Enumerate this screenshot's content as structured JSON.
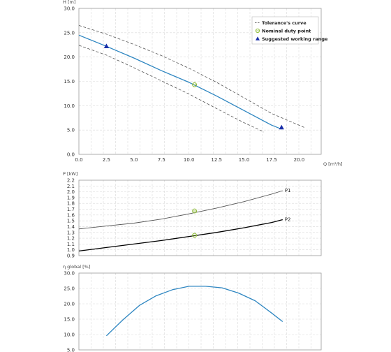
{
  "colors": {
    "grid": "#d9d9d9",
    "axis": "#999999",
    "head_curve": "#2e86c1",
    "tolerance": "#555555",
    "p1_curve": "#555555",
    "p2_curve": "#000000",
    "nominal_marker": "#8fbc3a",
    "range_marker": "#1a2fa8",
    "eff_curve": "#2e86c1"
  },
  "chart_data": [
    {
      "type": "line",
      "xlabel": "Q [m³/h]",
      "ylabel": "H [m]",
      "xlim": [
        0,
        22
      ],
      "ylim": [
        0,
        30
      ],
      "x_ticks": [
        0.0,
        2.5,
        5.0,
        7.5,
        10.0,
        12.5,
        15.0,
        17.5,
        20.0
      ],
      "y_ticks": [
        0.0,
        5.0,
        10.0,
        15.0,
        20.0,
        25.0,
        30.0
      ],
      "grid": true,
      "legend_position": "top-right",
      "legend": [
        {
          "label": "Tolerance's curve",
          "icon": "dashed-line"
        },
        {
          "label": "Nominal duty point",
          "icon": "circle"
        },
        {
          "label": "Suggested working range",
          "icon": "triangle"
        }
      ],
      "series": [
        {
          "role": "head",
          "style": "solid",
          "x": [
            0,
            2.5,
            5,
            7.5,
            10,
            12.5,
            15,
            17.5,
            18.4
          ],
          "y": [
            24.5,
            22.2,
            19.8,
            17.2,
            14.8,
            12.0,
            9.0,
            6.0,
            5.2
          ]
        },
        {
          "role": "tolerance-upper",
          "style": "dashed",
          "x": [
            0,
            2.5,
            5,
            7.5,
            10,
            12.5,
            15,
            17.5,
            20.5
          ],
          "y": [
            26.5,
            24.7,
            22.6,
            20.3,
            17.7,
            14.8,
            11.6,
            8.4,
            5.5
          ]
        },
        {
          "role": "tolerance-lower",
          "style": "dashed",
          "x": [
            0,
            2.5,
            5,
            7.5,
            10,
            12.5,
            15,
            16.8
          ],
          "y": [
            22.4,
            20.4,
            17.8,
            15.1,
            12.4,
            9.4,
            6.5,
            4.6
          ]
        }
      ],
      "points": [
        {
          "role": "nominal",
          "x": 10.5,
          "y": 14.3
        },
        {
          "role": "range",
          "x": 2.5,
          "y": 22.2
        },
        {
          "role": "range",
          "x": 18.4,
          "y": 5.5
        }
      ]
    },
    {
      "type": "line",
      "ylabel": "P [kW]",
      "xlim": [
        0,
        22
      ],
      "ylim": [
        0.9,
        2.2
      ],
      "y_ticks": [
        0.9,
        1.0,
        1.1,
        1.2,
        1.3,
        1.4,
        1.5,
        1.6,
        1.7,
        1.8,
        1.9,
        2.0,
        2.1,
        2.2
      ],
      "grid": true,
      "series": [
        {
          "name": "P1",
          "x": [
            0,
            2.5,
            5,
            7.5,
            10,
            12.5,
            15,
            17.5,
            18.5
          ],
          "y": [
            1.36,
            1.41,
            1.46,
            1.53,
            1.62,
            1.72,
            1.83,
            1.96,
            2.02
          ]
        },
        {
          "name": "P2",
          "x": [
            0,
            2.5,
            5,
            7.5,
            10,
            12.5,
            15,
            17.5,
            18.5
          ],
          "y": [
            0.98,
            1.04,
            1.1,
            1.16,
            1.23,
            1.3,
            1.38,
            1.47,
            1.52
          ]
        }
      ],
      "points": [
        {
          "role": "nominal",
          "x": 10.5,
          "y": 1.67
        },
        {
          "role": "nominal",
          "x": 10.5,
          "y": 1.25
        }
      ]
    },
    {
      "type": "line",
      "ylabel": "η global [%]",
      "xlim": [
        0,
        22
      ],
      "ylim": [
        5,
        30
      ],
      "y_ticks": [
        5.0,
        10.0,
        15.0,
        20.0,
        25.0,
        30.0
      ],
      "grid": true,
      "series": [
        {
          "role": "efficiency",
          "x": [
            2.5,
            4,
            5.5,
            7,
            8.5,
            10,
            11.5,
            13,
            14.5,
            16,
            17.5,
            18.5
          ],
          "y": [
            9.6,
            14.8,
            19.5,
            22.6,
            24.6,
            25.7,
            25.7,
            25.2,
            23.5,
            21.0,
            17.0,
            14.2
          ]
        }
      ]
    }
  ]
}
